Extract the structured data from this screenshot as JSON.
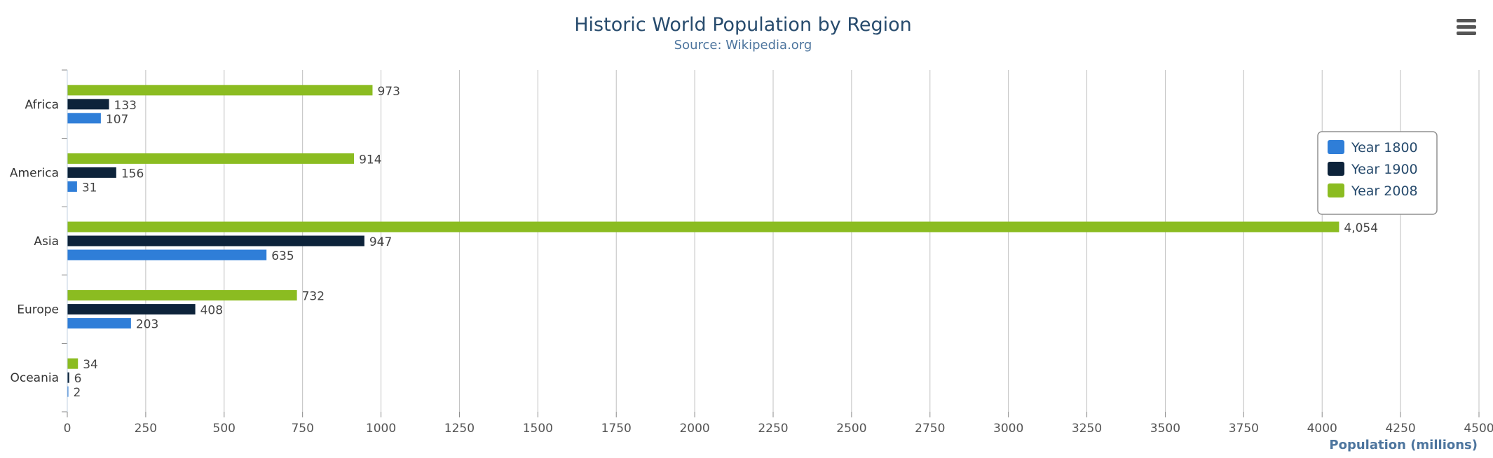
{
  "colors": {
    "year_1800": "#2f7ed8",
    "year_1900": "#0d233a",
    "year_2008": "#8bbc21",
    "grid": "#c0c0c0",
    "axis": "#888888"
  },
  "icons": {
    "menu": "hamburger-menu-icon"
  },
  "chart_data": {
    "type": "bar",
    "orientation": "horizontal",
    "title": "Historic World Population by Region",
    "subtitle": "Source: Wikipedia.org",
    "xlabel": "Population (millions)",
    "ylabel": "",
    "categories": [
      "Africa",
      "America",
      "Asia",
      "Europe",
      "Oceania"
    ],
    "series": [
      {
        "name": "Year 1800",
        "values": [
          107,
          31,
          635,
          203,
          2
        ]
      },
      {
        "name": "Year 1900",
        "values": [
          133,
          156,
          947,
          408,
          6
        ]
      },
      {
        "name": "Year 2008",
        "values": [
          973,
          914,
          4054,
          732,
          34
        ]
      }
    ],
    "value_labels": [
      [
        "107",
        "31",
        "635",
        "203",
        "2"
      ],
      [
        "133",
        "156",
        "947",
        "408",
        "6"
      ],
      [
        "973",
        "914",
        "4,054",
        "732",
        "34"
      ]
    ],
    "xlim": [
      0,
      4500
    ],
    "xticks": [
      0,
      250,
      500,
      750,
      1000,
      1250,
      1500,
      1750,
      2000,
      2250,
      2500,
      2750,
      3000,
      3250,
      3500,
      3750,
      4000,
      4250,
      4500
    ],
    "grid": true,
    "legend": "right"
  }
}
